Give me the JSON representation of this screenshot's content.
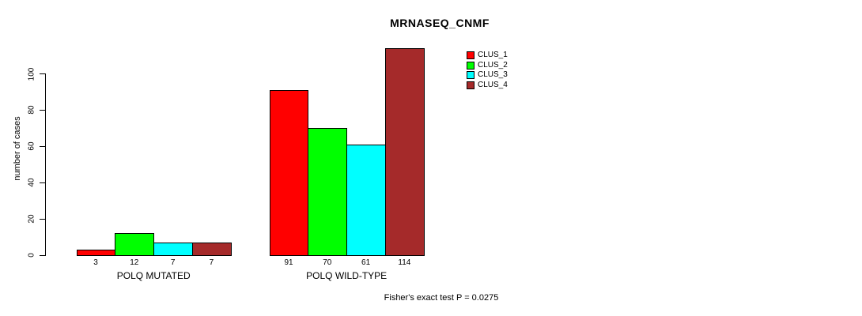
{
  "page": {
    "background_color": "#ffffff",
    "text_color": "#000000"
  },
  "chart_data": {
    "type": "bar",
    "title": "MRNASEQ_CNMF",
    "ylabel": "number of cases",
    "xlabel": "",
    "ylim": [
      0,
      115
    ],
    "yticks": [
      0,
      20,
      40,
      60,
      80,
      100
    ],
    "grid": false,
    "bar_value_labels_shown": true,
    "categories": [
      "POLQ MUTATED",
      "POLQ WILD-TYPE"
    ],
    "series": [
      {
        "name": "CLUS_1",
        "color": "#ff0000",
        "values": [
          3,
          91
        ]
      },
      {
        "name": "CLUS_2",
        "color": "#00ff00",
        "values": [
          12,
          70
        ]
      },
      {
        "name": "CLUS_3",
        "color": "#00ffff",
        "values": [
          7,
          61
        ]
      },
      {
        "name": "CLUS_4",
        "color": "#a52a2a",
        "values": [
          7,
          114
        ]
      }
    ],
    "legend": {
      "position": "top-right-outside",
      "entries": [
        {
          "label": "CLUS_1",
          "color": "#ff0000"
        },
        {
          "label": "CLUS_2",
          "color": "#00ff00"
        },
        {
          "label": "CLUS_3",
          "color": "#00ffff"
        },
        {
          "label": "CLUS_4",
          "color": "#a52a2a"
        }
      ]
    },
    "annotation": "Fisher's exact test P = 0.0275"
  }
}
